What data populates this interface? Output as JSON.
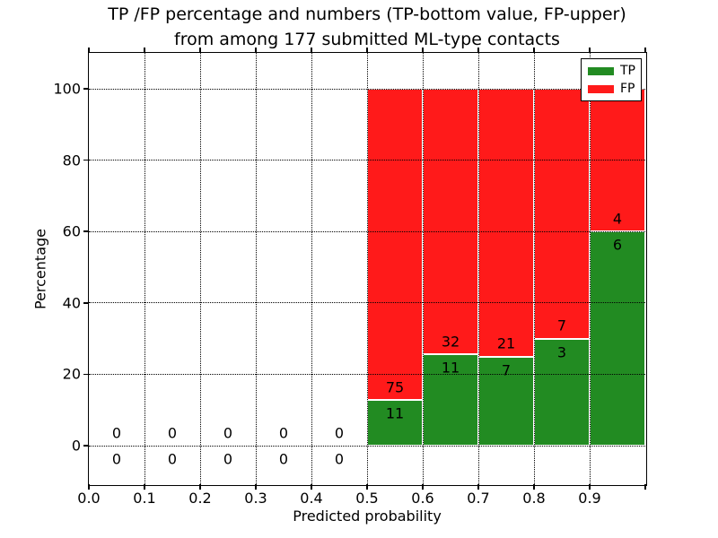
{
  "chart_data": {
    "type": "bar",
    "stacked": true,
    "title": "TP /FP percentage and numbers (TP-bottom value, FP-upper)\nfrom among 177 submitted ML-type contacts",
    "xlabel": "Predicted probability",
    "ylabel": "Percentage",
    "total_contacts": 177,
    "xlim": [
      0.0,
      1.0
    ],
    "ylim": [
      -11,
      110
    ],
    "xtick_labels": [
      "0.0",
      "0.1",
      "0.2",
      "0.3",
      "0.4",
      "0.5",
      "0.6",
      "0.7",
      "0.8",
      "0.9"
    ],
    "ytick_labels": [
      "0",
      "20",
      "40",
      "60",
      "80",
      "100"
    ],
    "grid": "dotted",
    "legend": {
      "position": "upper right",
      "entries": [
        {
          "label": "TP",
          "color": "#228b22"
        },
        {
          "label": "FP",
          "color": "#ff1a1a"
        }
      ]
    },
    "bins": [
      {
        "range": [
          0.0,
          0.1
        ],
        "tp": 0,
        "fp": 0
      },
      {
        "range": [
          0.1,
          0.2
        ],
        "tp": 0,
        "fp": 0
      },
      {
        "range": [
          0.2,
          0.3
        ],
        "tp": 0,
        "fp": 0
      },
      {
        "range": [
          0.3,
          0.4
        ],
        "tp": 0,
        "fp": 0
      },
      {
        "range": [
          0.4,
          0.5
        ],
        "tp": 0,
        "fp": 0
      },
      {
        "range": [
          0.5,
          0.6
        ],
        "tp": 11,
        "fp": 75
      },
      {
        "range": [
          0.6,
          0.7
        ],
        "tp": 11,
        "fp": 32
      },
      {
        "range": [
          0.7,
          0.8
        ],
        "tp": 7,
        "fp": 21
      },
      {
        "range": [
          0.8,
          0.9
        ],
        "tp": 3,
        "fp": 7
      },
      {
        "range": [
          0.9,
          1.0
        ],
        "tp": 6,
        "fp": 4
      }
    ]
  },
  "colors": {
    "tp": "#228b22",
    "fp": "#ff1a1a",
    "axes": "#000000",
    "grid": "#000000",
    "bar_edge": "#ffffff",
    "background": "#ffffff"
  }
}
